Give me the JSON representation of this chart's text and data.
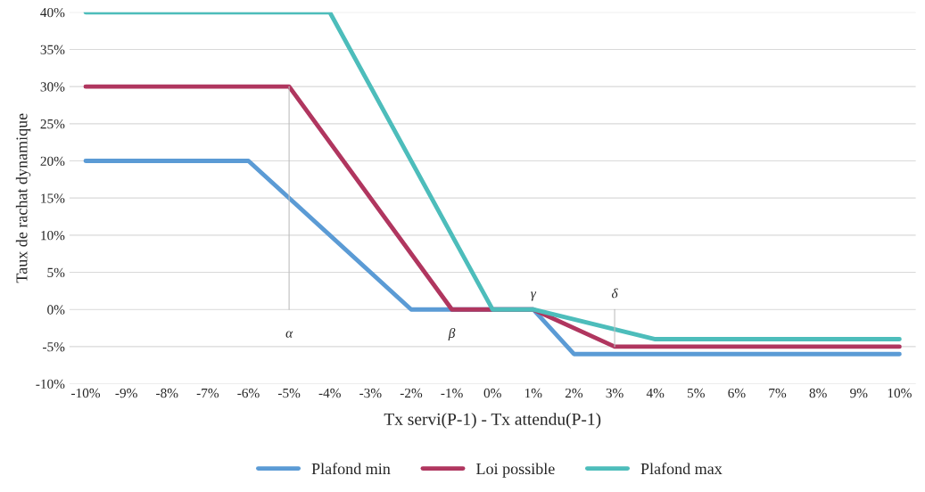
{
  "chart_data": {
    "type": "line",
    "xlabel": "Tx servi(P-1) - Tx attendu(P-1)",
    "ylabel": "Taux de rachat dynamique",
    "xlim": [
      -10.4,
      10.4
    ],
    "xticks": [
      {
        "value": -10,
        "label": "-10%"
      },
      {
        "value": -9,
        "label": "-9%"
      },
      {
        "value": -8,
        "label": "-8%"
      },
      {
        "value": -7,
        "label": "-7%"
      },
      {
        "value": -6,
        "label": "-6%"
      },
      {
        "value": -5,
        "label": "-5%"
      },
      {
        "value": -4,
        "label": "-4%"
      },
      {
        "value": -3,
        "label": "-3%"
      },
      {
        "value": -2,
        "label": "-2%"
      },
      {
        "value": -1,
        "label": "-1%"
      },
      {
        "value": 0,
        "label": "0%"
      },
      {
        "value": 1,
        "label": "1%"
      },
      {
        "value": 2,
        "label": "2%"
      },
      {
        "value": 3,
        "label": "3%"
      },
      {
        "value": 4,
        "label": "4%"
      },
      {
        "value": 5,
        "label": "5%"
      },
      {
        "value": 6,
        "label": "6%"
      },
      {
        "value": 7,
        "label": "7%"
      },
      {
        "value": 8,
        "label": "8%"
      },
      {
        "value": 9,
        "label": "9%"
      },
      {
        "value": 10,
        "label": "10%"
      }
    ],
    "ylim": [
      -10,
      40
    ],
    "yticks": [
      {
        "value": -10,
        "label": "-10%"
      },
      {
        "value": -5,
        "label": "-5%"
      },
      {
        "value": 0,
        "label": "0%"
      },
      {
        "value": 5,
        "label": "5%"
      },
      {
        "value": 10,
        "label": "10%"
      },
      {
        "value": 15,
        "label": "15%"
      },
      {
        "value": 20,
        "label": "20%"
      },
      {
        "value": 25,
        "label": "25%"
      },
      {
        "value": 30,
        "label": "30%"
      },
      {
        "value": 35,
        "label": "35%"
      },
      {
        "value": 40,
        "label": "40%"
      }
    ],
    "grid": "y",
    "legend": "bottom",
    "line_style": "solid",
    "series": [
      {
        "name": "Plafond min",
        "color": "#5b9bd5",
        "x": [
          -10,
          -6,
          -2,
          1,
          2,
          10
        ],
        "values": [
          20,
          20,
          0,
          0,
          -6,
          -6
        ]
      },
      {
        "name": "Loi possible",
        "color": "#b0365f",
        "x": [
          -10,
          -5,
          -1,
          1,
          3,
          10
        ],
        "values": [
          30,
          30,
          0,
          0,
          -5,
          -5
        ]
      },
      {
        "name": "Plafond max",
        "color": "#4dbdbb",
        "x": [
          -10,
          -4,
          0,
          1,
          4,
          10
        ],
        "values": [
          40,
          40,
          0,
          0,
          -4,
          -4
        ]
      },
      {
        "color": "#bfbfbf",
        "x": [
          -5,
          -5
        ],
        "values": [
          0,
          30
        ]
      },
      {
        "color": "#bfbfbf",
        "x": [
          3,
          3
        ],
        "values": [
          -5,
          0
        ]
      }
    ],
    "annotations": [
      {
        "text": "α",
        "x": -5,
        "y": 0
      },
      {
        "text": "β",
        "x": -1,
        "y": 0
      },
      {
        "text": "γ",
        "x": 1,
        "y": 0
      },
      {
        "text": "δ",
        "x": 3,
        "y": 0
      }
    ]
  }
}
